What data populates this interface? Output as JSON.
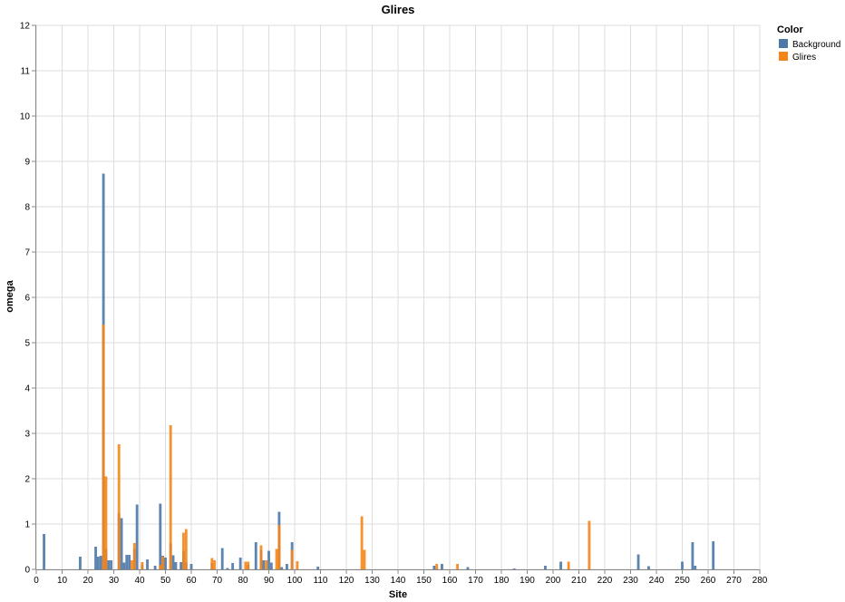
{
  "chart_data": {
    "type": "bar",
    "title": "Glires",
    "xlabel": "Site",
    "ylabel": "omega",
    "xlim": [
      0,
      280
    ],
    "ylim": [
      0,
      12
    ],
    "x_ticks": [
      0,
      10,
      20,
      30,
      40,
      50,
      60,
      70,
      80,
      90,
      100,
      110,
      120,
      130,
      140,
      150,
      160,
      170,
      180,
      190,
      200,
      210,
      220,
      230,
      240,
      250,
      260,
      270,
      280
    ],
    "y_ticks": [
      0,
      1,
      2,
      3,
      4,
      5,
      6,
      7,
      8,
      9,
      10,
      11,
      12
    ],
    "grid": true,
    "legend": {
      "title": "Color",
      "position": "top-right"
    },
    "series": [
      {
        "name": "Background",
        "color": "#4c78a8",
        "points": [
          {
            "x": 3,
            "y": 0.78
          },
          {
            "x": 17,
            "y": 0.28
          },
          {
            "x": 23,
            "y": 0.5
          },
          {
            "x": 24,
            "y": 0.28
          },
          {
            "x": 25,
            "y": 0.3
          },
          {
            "x": 26,
            "y": 8.73
          },
          {
            "x": 27,
            "y": 0.45
          },
          {
            "x": 28,
            "y": 0.2
          },
          {
            "x": 29,
            "y": 0.2
          },
          {
            "x": 32,
            "y": 1.24
          },
          {
            "x": 33,
            "y": 1.13
          },
          {
            "x": 34,
            "y": 0.15
          },
          {
            "x": 35,
            "y": 0.32
          },
          {
            "x": 36,
            "y": 0.32
          },
          {
            "x": 38,
            "y": 0.45
          },
          {
            "x": 39,
            "y": 1.43
          },
          {
            "x": 41,
            "y": 0.1
          },
          {
            "x": 43,
            "y": 0.22
          },
          {
            "x": 46,
            "y": 0.08
          },
          {
            "x": 48,
            "y": 1.45
          },
          {
            "x": 49,
            "y": 0.3
          },
          {
            "x": 50,
            "y": 0.26
          },
          {
            "x": 52,
            "y": 0.57
          },
          {
            "x": 53,
            "y": 0.31
          },
          {
            "x": 54,
            "y": 0.16
          },
          {
            "x": 56,
            "y": 0.16
          },
          {
            "x": 57,
            "y": 0.41
          },
          {
            "x": 58,
            "y": 0.15
          },
          {
            "x": 60,
            "y": 0.12
          },
          {
            "x": 68,
            "y": 0.14
          },
          {
            "x": 72,
            "y": 0.47
          },
          {
            "x": 74,
            "y": 0.03
          },
          {
            "x": 76,
            "y": 0.14
          },
          {
            "x": 79,
            "y": 0.26
          },
          {
            "x": 82,
            "y": 0.1
          },
          {
            "x": 85,
            "y": 0.6
          },
          {
            "x": 87,
            "y": 0.42
          },
          {
            "x": 88,
            "y": 0.2
          },
          {
            "x": 90,
            "y": 0.41
          },
          {
            "x": 91,
            "y": 0.15
          },
          {
            "x": 94,
            "y": 1.27
          },
          {
            "x": 95,
            "y": 0.05
          },
          {
            "x": 97,
            "y": 0.12
          },
          {
            "x": 99,
            "y": 0.6
          },
          {
            "x": 109,
            "y": 0.06
          },
          {
            "x": 154,
            "y": 0.08
          },
          {
            "x": 157,
            "y": 0.12
          },
          {
            "x": 167,
            "y": 0.05
          },
          {
            "x": 185,
            "y": 0.02
          },
          {
            "x": 197,
            "y": 0.08
          },
          {
            "x": 203,
            "y": 0.17
          },
          {
            "x": 233,
            "y": 0.33
          },
          {
            "x": 237,
            "y": 0.07
          },
          {
            "x": 250,
            "y": 0.17
          },
          {
            "x": 254,
            "y": 0.6
          },
          {
            "x": 255,
            "y": 0.08
          },
          {
            "x": 262,
            "y": 0.62
          }
        ]
      },
      {
        "name": "Glires",
        "color": "#f58518",
        "points": [
          {
            "x": 26,
            "y": 5.4
          },
          {
            "x": 27,
            "y": 2.05
          },
          {
            "x": 32,
            "y": 2.76
          },
          {
            "x": 37,
            "y": 0.2
          },
          {
            "x": 38,
            "y": 0.58
          },
          {
            "x": 41,
            "y": 0.16
          },
          {
            "x": 48,
            "y": 0.1
          },
          {
            "x": 49,
            "y": 0.28
          },
          {
            "x": 52,
            "y": 3.18
          },
          {
            "x": 57,
            "y": 0.81
          },
          {
            "x": 58,
            "y": 0.89
          },
          {
            "x": 68,
            "y": 0.25
          },
          {
            "x": 69,
            "y": 0.2
          },
          {
            "x": 81,
            "y": 0.17
          },
          {
            "x": 82,
            "y": 0.17
          },
          {
            "x": 87,
            "y": 0.53
          },
          {
            "x": 89,
            "y": 0.2
          },
          {
            "x": 93,
            "y": 0.45
          },
          {
            "x": 94,
            "y": 0.98
          },
          {
            "x": 99,
            "y": 0.43
          },
          {
            "x": 101,
            "y": 0.18
          },
          {
            "x": 126,
            "y": 1.17
          },
          {
            "x": 127,
            "y": 0.43
          },
          {
            "x": 155,
            "y": 0.12
          },
          {
            "x": 163,
            "y": 0.12
          },
          {
            "x": 206,
            "y": 0.17
          },
          {
            "x": 214,
            "y": 1.07
          }
        ]
      }
    ]
  }
}
